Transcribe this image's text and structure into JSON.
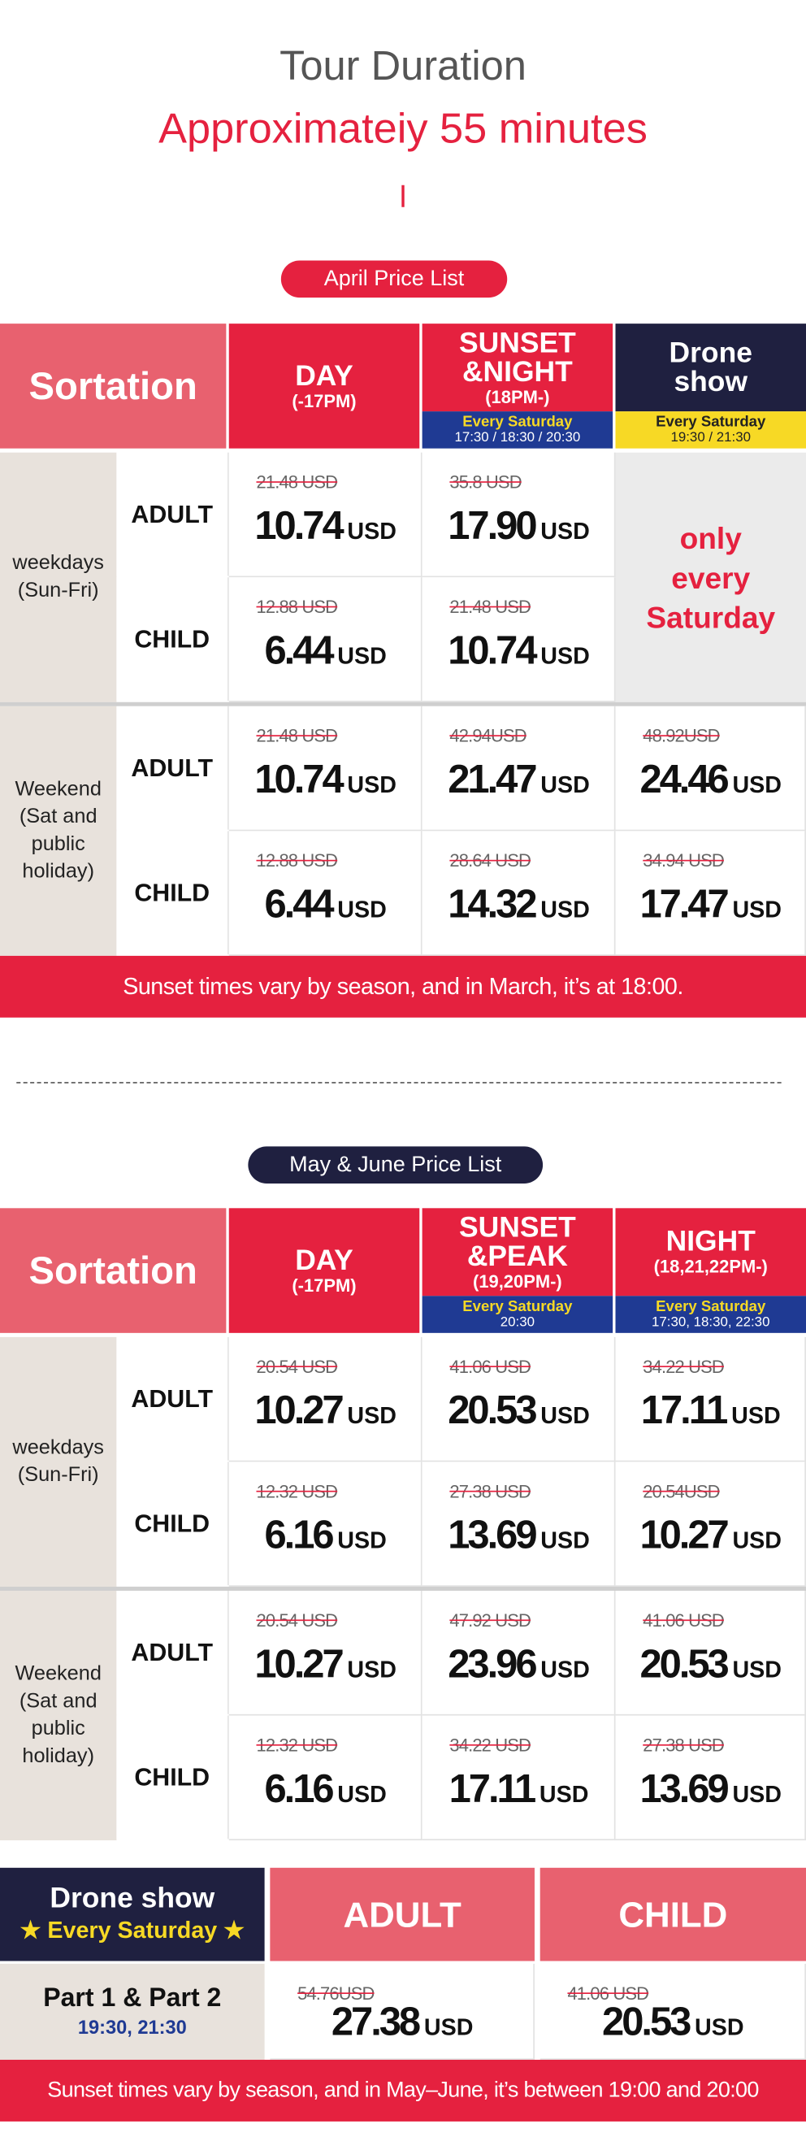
{
  "header": {
    "title": "Tour Duration",
    "subtitle": "Approximateiy 55 minutes"
  },
  "tables": [
    {
      "label": "April Price List",
      "columns": [
        {
          "lines": [
            "Sortation"
          ]
        },
        {
          "lines": [
            "DAY",
            "(-17PM)"
          ]
        },
        {
          "lines": [
            "SUNSET",
            "&NIGHT",
            "(18PM-)"
          ],
          "note": [
            "Every Saturday",
            "17:30 / 18:30 / 20:30"
          ]
        },
        {
          "lines": [
            "Drone",
            "show"
          ],
          "note": [
            "Every Saturday",
            "19:30 / 21:30"
          ]
        }
      ],
      "groups": [
        {
          "label": [
            "weekdays",
            "(Sun-Fri)"
          ],
          "rows": [
            {
              "type": "ADULT",
              "prices": [
                {
                  "old": "21.48 USD",
                  "price": "10.74",
                  "unit": "USD"
                },
                {
                  "old": "35.8 USD",
                  "price": "17.90",
                  "unit": "USD"
                }
              ]
            },
            {
              "type": "CHILD",
              "prices": [
                {
                  "old": "12.88 USD",
                  "price": "6.44",
                  "unit": "USD"
                },
                {
                  "old": "21.48 USD",
                  "price": "10.74",
                  "unit": "USD"
                }
              ]
            }
          ],
          "note_lines": [
            "only",
            "every",
            "Saturday"
          ]
        },
        {
          "label": [
            "Weekend",
            "(Sat and",
            "public",
            "holiday)"
          ],
          "rows": [
            {
              "type": "ADULT",
              "prices": [
                {
                  "old": "21.48 USD",
                  "price": "10.74",
                  "unit": "USD"
                },
                {
                  "old": "42.94USD",
                  "price": "21.47",
                  "unit": "USD"
                },
                {
                  "old": "48.92USD",
                  "price": "24.46",
                  "unit": "USD"
                }
              ]
            },
            {
              "type": "CHILD",
              "prices": [
                {
                  "old": "12.88 USD",
                  "price": "6.44",
                  "unit": "USD"
                },
                {
                  "old": "28.64 USD",
                  "price": "14.32",
                  "unit": "USD"
                },
                {
                  "old": "34.94 USD",
                  "price": "17.47",
                  "unit": "USD"
                }
              ]
            }
          ]
        }
      ],
      "footer": "Sunset times vary by season, and in March, it’s at 18:00."
    },
    {
      "label": "May & June Price List",
      "columns": [
        {
          "lines": [
            "Sortation"
          ]
        },
        {
          "lines": [
            "DAY",
            "(-17PM)"
          ]
        },
        {
          "lines": [
            "SUNSET",
            "&PEAK",
            "(19,20PM-)"
          ],
          "note": [
            "Every Saturday",
            "20:30"
          ]
        },
        {
          "lines": [
            "NIGHT",
            "(18,21,22PM-)"
          ],
          "note": [
            "Every Saturday",
            "17:30, 18:30, 22:30"
          ]
        }
      ],
      "groups": [
        {
          "label": [
            "weekdays",
            "(Sun-Fri)"
          ],
          "rows": [
            {
              "type": "ADULT",
              "prices": [
                {
                  "old": "20.54 USD",
                  "price": "10.27",
                  "unit": "USD"
                },
                {
                  "old": "41.06 USD",
                  "price": "20.53",
                  "unit": "USD"
                },
                {
                  "old": "34.22 USD",
                  "price": "17.11",
                  "unit": "USD"
                }
              ]
            },
            {
              "type": "CHILD",
              "prices": [
                {
                  "old": "12.32 USD",
                  "price": "6.16",
                  "unit": "USD"
                },
                {
                  "old": "27.38 USD",
                  "price": "13.69",
                  "unit": "USD"
                },
                {
                  "old": "20.54USD",
                  "price": "10.27",
                  "unit": "USD"
                }
              ]
            }
          ]
        },
        {
          "label": [
            "Weekend",
            "(Sat and",
            "public",
            "holiday)"
          ],
          "rows": [
            {
              "type": "ADULT",
              "prices": [
                {
                  "old": "20.54 USD",
                  "price": "10.27",
                  "unit": "USD"
                },
                {
                  "old": "47.92 USD",
                  "price": "23.96",
                  "unit": "USD"
                },
                {
                  "old": "41.06 USD",
                  "price": "20.53",
                  "unit": "USD"
                }
              ]
            },
            {
              "type": "CHILD",
              "prices": [
                {
                  "old": "12.32 USD",
                  "price": "6.16",
                  "unit": "USD"
                },
                {
                  "old": "34.22 USD",
                  "price": "17.11",
                  "unit": "USD"
                },
                {
                  "old": "27.38 USD",
                  "price": "13.69",
                  "unit": "USD"
                }
              ]
            }
          ]
        }
      ]
    }
  ],
  "drone": {
    "title": "Drone show",
    "subtitle": "★ Every Saturday ★",
    "columns": [
      "ADULT",
      "CHILD"
    ],
    "label": [
      "Part 1 & Part 2",
      "19:30, 21:30"
    ],
    "prices": [
      {
        "old": "54.76USD",
        "price": "27.38",
        "unit": "USD"
      },
      {
        "old": "41.06 USD",
        "price": "20.53",
        "unit": "USD"
      }
    ],
    "footer": "Sunset times vary by season, and in May–June, it’s between 19:00 and 20:00"
  }
}
